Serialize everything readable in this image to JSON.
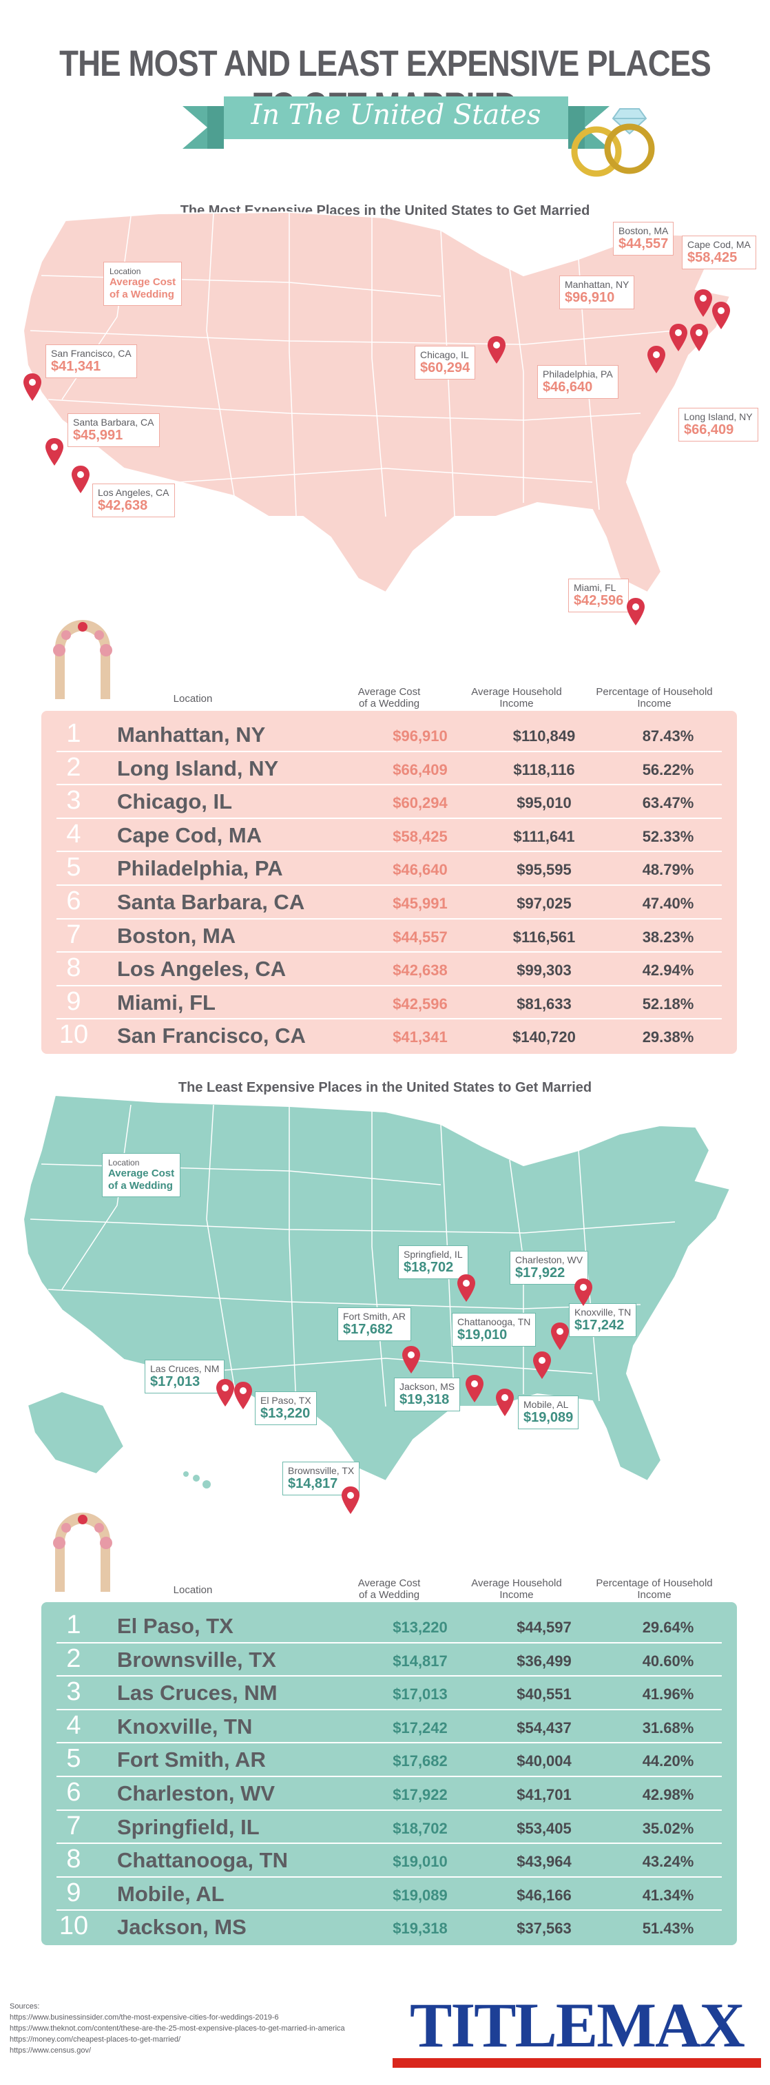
{
  "header": {
    "title": "THE MOST AND LEAST EXPENSIVE PLACES TO GET MARRIED",
    "subtitle": "In The United States"
  },
  "colors": {
    "pink_map": "#f9d5cf",
    "pink_accent": "#ec8a7c",
    "pink_table": "#fbd8d2",
    "teal_map": "#98d2c6",
    "teal_accent": "#3e8f82",
    "teal_table": "#9dd3c7",
    "pin_red": "#d9364a",
    "text_gray": "#5d5d62",
    "logo_blue": "#1d3f96",
    "logo_red": "#d9261c"
  },
  "most_expensive": {
    "map_title": "The Most Expensive Places in the United States to Get Married",
    "legend": {
      "line1": "Location",
      "line2": "Average Cost",
      "line3": "of a Wedding"
    },
    "callouts": [
      {
        "city": "Boston, MA",
        "cost": "$44,557"
      },
      {
        "city": "Cape Cod, MA",
        "cost": "$58,425"
      },
      {
        "city": "Manhattan, NY",
        "cost": "$96,910"
      },
      {
        "city": "San Francisco, CA",
        "cost": "$41,341"
      },
      {
        "city": "Chicago, IL",
        "cost": "$60,294"
      },
      {
        "city": "Philadelphia, PA",
        "cost": "$46,640"
      },
      {
        "city": "Long Island, NY",
        "cost": "$66,409"
      },
      {
        "city": "Santa Barbara, CA",
        "cost": "$45,991"
      },
      {
        "city": "Los Angeles, CA",
        "cost": "$42,638"
      },
      {
        "city": "Miami, FL",
        "cost": "$42,596"
      }
    ],
    "table_headers": {
      "location": "Location",
      "cost_1": "Average Cost",
      "cost_2": "of a Wedding",
      "income_1": "Average Household",
      "income_2": "Income",
      "pct_1": "Percentage of Household",
      "pct_2": "Income"
    },
    "rows": [
      {
        "rank": "1",
        "location": "Manhattan, NY",
        "cost": "$96,910",
        "income": "$110,849",
        "pct": "87.43%"
      },
      {
        "rank": "2",
        "location": "Long Island, NY",
        "cost": "$66,409",
        "income": "$118,116",
        "pct": "56.22%"
      },
      {
        "rank": "3",
        "location": "Chicago, IL",
        "cost": "$60,294",
        "income": "$95,010",
        "pct": "63.47%"
      },
      {
        "rank": "4",
        "location": "Cape Cod, MA",
        "cost": "$58,425",
        "income": "$111,641",
        "pct": "52.33%"
      },
      {
        "rank": "5",
        "location": "Philadelphia, PA",
        "cost": "$46,640",
        "income": "$95,595",
        "pct": "48.79%"
      },
      {
        "rank": "6",
        "location": "Santa Barbara, CA",
        "cost": "$45,991",
        "income": "$97,025",
        "pct": "47.40%"
      },
      {
        "rank": "7",
        "location": "Boston, MA",
        "cost": "$44,557",
        "income": "$116,561",
        "pct": "38.23%"
      },
      {
        "rank": "8",
        "location": "Los Angeles, CA",
        "cost": "$42,638",
        "income": "$99,303",
        "pct": "42.94%"
      },
      {
        "rank": "9",
        "location": "Miami, FL",
        "cost": "$42,596",
        "income": "$81,633",
        "pct": "52.18%"
      },
      {
        "rank": "10",
        "location": "San Francisco, CA",
        "cost": "$41,341",
        "income": "$140,720",
        "pct": "29.38%"
      }
    ]
  },
  "least_expensive": {
    "map_title": "The Least Expensive Places in the United States to Get Married",
    "legend": {
      "line1": "Location",
      "line2": "Average Cost",
      "line3": "of a Wedding"
    },
    "callouts": [
      {
        "city": "Springfield, IL",
        "cost": "$18,702"
      },
      {
        "city": "Charleston, WV",
        "cost": "$17,922"
      },
      {
        "city": "Fort Smith, AR",
        "cost": "$17,682"
      },
      {
        "city": "Chattanooga, TN",
        "cost": "$19,010"
      },
      {
        "city": "Knoxville, TN",
        "cost": "$17,242"
      },
      {
        "city": "Las Cruces, NM",
        "cost": "$17,013"
      },
      {
        "city": "Jackson, MS",
        "cost": "$19,318"
      },
      {
        "city": "El Paso, TX",
        "cost": "$13,220"
      },
      {
        "city": "Mobile, AL",
        "cost": "$19,089"
      },
      {
        "city": "Brownsville, TX",
        "cost": "$14,817"
      }
    ],
    "table_headers": {
      "location": "Location",
      "cost_1": "Average Cost",
      "cost_2": "of a Wedding",
      "income_1": "Average Household",
      "income_2": "Income",
      "pct_1": "Percentage of Household",
      "pct_2": "Income"
    },
    "rows": [
      {
        "rank": "1",
        "location": "El Paso, TX",
        "cost": "$13,220",
        "income": "$44,597",
        "pct": "29.64%"
      },
      {
        "rank": "2",
        "location": "Brownsville, TX",
        "cost": "$14,817",
        "income": "$36,499",
        "pct": "40.60%"
      },
      {
        "rank": "3",
        "location": "Las Cruces, NM",
        "cost": "$17,013",
        "income": "$40,551",
        "pct": "41.96%"
      },
      {
        "rank": "4",
        "location": "Knoxville, TN",
        "cost": "$17,242",
        "income": "$54,437",
        "pct": "31.68%"
      },
      {
        "rank": "5",
        "location": "Fort Smith, AR",
        "cost": "$17,682",
        "income": "$40,004",
        "pct": "44.20%"
      },
      {
        "rank": "6",
        "location": "Charleston, WV",
        "cost": "$17,922",
        "income": "$41,701",
        "pct": "42.98%"
      },
      {
        "rank": "7",
        "location": "Springfield, IL",
        "cost": "$18,702",
        "income": "$53,405",
        "pct": "35.02%"
      },
      {
        "rank": "8",
        "location": "Chattanooga, TN",
        "cost": "$19,010",
        "income": "$43,964",
        "pct": "43.24%"
      },
      {
        "rank": "9",
        "location": "Mobile, AL",
        "cost": "$19,089",
        "income": "$46,166",
        "pct": "41.34%"
      },
      {
        "rank": "10",
        "location": "Jackson, MS",
        "cost": "$19,318",
        "income": "$37,563",
        "pct": "51.43%"
      }
    ]
  },
  "sources": {
    "label": "Sources:",
    "links": [
      "https://www.businessinsider.com/the-most-expensive-cities-for-weddings-2019-6",
      "https://www.theknot.com/content/these-are-the-25-most-expensive-places-to-get-married-in-america",
      "https://money.com/cheapest-places-to-get-married/",
      "https://www.census.gov/"
    ]
  },
  "logo": {
    "text": "TITLEMAX"
  }
}
